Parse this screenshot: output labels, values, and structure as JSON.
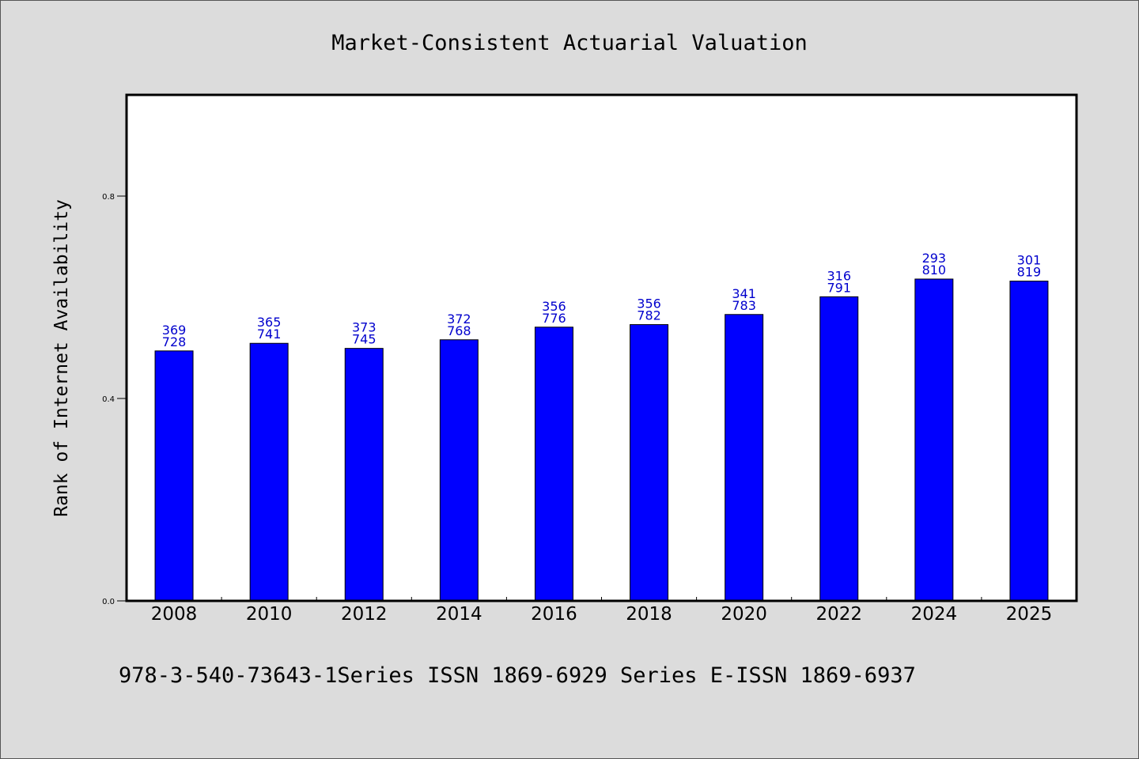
{
  "chart_data": {
    "type": "bar",
    "title": "Market-Consistent Actuarial Valuation",
    "xlabel": "",
    "ylabel": "Rank of Internet Availability",
    "ylim": [
      0.0,
      1.0
    ],
    "yticks": [
      "0.0",
      "0.4",
      "0.8"
    ],
    "grid": false,
    "legend": "none",
    "categories": [
      "2008",
      "2010",
      "2012",
      "2014",
      "2016",
      "2018",
      "2020",
      "2022",
      "2024",
      "2025"
    ],
    "series": [
      {
        "values": [
          0.494,
          0.509,
          0.499,
          0.516,
          0.541,
          0.546,
          0.566,
          0.601,
          0.636,
          0.632
        ],
        "labels_top": [
          "369",
          "365",
          "373",
          "372",
          "356",
          "356",
          "341",
          "316",
          "293",
          "301"
        ],
        "labels_bottom": [
          "728",
          "741",
          "745",
          "768",
          "776",
          "782",
          "783",
          "791",
          "810",
          "819"
        ]
      }
    ],
    "colors": {
      "bar": "#0000ff",
      "bar_outline": "#000000",
      "value_label": "#0000cd",
      "plot_background": "#ffffff",
      "figure_background": "#dcdcdc"
    }
  },
  "footer": {
    "text": "978-3-540-73643-1Series ISSN 1869-6929 Series E-ISSN 1869-6937"
  }
}
